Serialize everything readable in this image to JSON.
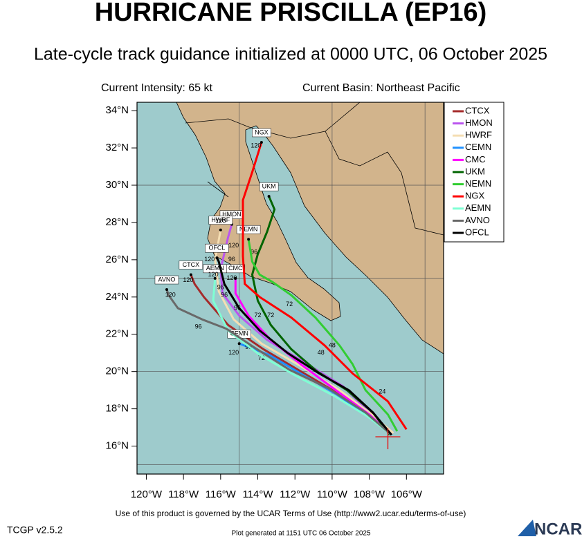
{
  "header": {
    "title": "HURRICANE PRISCILLA (EP16)",
    "subtitle": "Late-cycle track guidance initialized at 0000 UTC, 06 October 2025",
    "intensity": "Current Intensity: 65 kt",
    "basin": "Current Basin: Northeast Pacific"
  },
  "map": {
    "xlim": [
      -120.5,
      -104
    ],
    "ylim": [
      14.5,
      34.45
    ],
    "xticks": [
      {
        "value": -120,
        "label": "120°W"
      },
      {
        "value": -118,
        "label": "118°W"
      },
      {
        "value": -116,
        "label": "116°W"
      },
      {
        "value": -114,
        "label": "114°W"
      },
      {
        "value": -112,
        "label": "112°W"
      },
      {
        "value": -110,
        "label": "110°W"
      },
      {
        "value": -108,
        "label": "108°W"
      },
      {
        "value": -106,
        "label": "106°W"
      }
    ],
    "yticks": [
      {
        "value": 16,
        "label": "16°N"
      },
      {
        "value": 18,
        "label": "18°N"
      },
      {
        "value": 20,
        "label": "20°N"
      },
      {
        "value": 22,
        "label": "22°N"
      },
      {
        "value": 24,
        "label": "24°N"
      },
      {
        "value": 26,
        "label": "26°N"
      },
      {
        "value": 28,
        "label": "28°N"
      },
      {
        "value": 30,
        "label": "30°N"
      },
      {
        "value": 32,
        "label": "32°N"
      },
      {
        "value": 34,
        "label": "34°N"
      }
    ],
    "grid_lons": [
      -115,
      -110,
      -105
    ],
    "grid_lats": [
      15,
      20,
      25,
      30
    ],
    "storm_position": {
      "lon": -107.0,
      "lat": 16.5
    },
    "tracks": [
      {
        "name": "CTCX",
        "color": "#a52a2a",
        "lon": [
          -106.8,
          -107.8,
          -109.3,
          -111.5,
          -113.7,
          -115.6,
          -116.9,
          -117.4,
          -117.6
        ],
        "lat": [
          16.6,
          17.7,
          18.6,
          19.9,
          21.2,
          22.5,
          24.0,
          24.7,
          25.2
        ],
        "hour_labels": [
          {
            "text": "120",
            "lon": -117.75,
            "lat": 24.9
          }
        ]
      },
      {
        "name": "HMON",
        "color": "#bb55ee",
        "lon": [
          -106.7,
          -107.9,
          -109.4,
          -111.5,
          -113.5,
          -115.0,
          -115.9,
          -116.0,
          -115.6,
          -115.4
        ],
        "lat": [
          16.7,
          17.7,
          19.2,
          20.5,
          21.7,
          23.0,
          24.2,
          25.5,
          27.2,
          27.9
        ],
        "hour_labels": [
          {
            "text": "96",
            "lon": -115.4,
            "lat": 26.0
          }
        ]
      },
      {
        "name": "HWRF",
        "color": "#f5deb3",
        "lon": [
          -106.7,
          -108.0,
          -109.6,
          -111.7,
          -113.8,
          -115.3,
          -116.1,
          -116.3,
          -116.0
        ],
        "lat": [
          16.7,
          17.8,
          19.0,
          20.3,
          21.5,
          22.8,
          24.3,
          26.0,
          27.6
        ],
        "hour_labels": [
          {
            "text": "120",
            "lon": -116.0,
            "lat": 28.05
          }
        ]
      },
      {
        "name": "CEMN",
        "color": "#1e90ff",
        "lon": [
          -106.8,
          -108.0,
          -109.8,
          -111.7,
          -113.4,
          -115.0
        ],
        "lat": [
          16.6,
          17.6,
          18.8,
          19.9,
          20.9,
          21.5
        ],
        "hour_labels": [
          {
            "text": "120",
            "lon": -115.3,
            "lat": 21.0
          },
          {
            "text": "96",
            "lon": -114.5,
            "lat": 21.3
          },
          {
            "text": "72",
            "lon": -113.8,
            "lat": 20.7
          }
        ]
      },
      {
        "name": "CMC",
        "color": "#ff00ff",
        "lon": [
          -106.8,
          -108.0,
          -109.8,
          -111.7,
          -113.3,
          -114.5,
          -115.2,
          -115.2
        ],
        "lat": [
          16.6,
          17.7,
          19.0,
          20.4,
          21.7,
          23.0,
          24.2,
          25.0
        ],
        "hour_labels": [
          {
            "text": "120",
            "lon": -115.4,
            "lat": 25.0
          },
          {
            "text": "96",
            "lon": -115.1,
            "lat": 23.4
          },
          {
            "text": "72",
            "lon": -114.0,
            "lat": 23.0
          }
        ]
      },
      {
        "name": "UKM",
        "color": "#006400",
        "lon": [
          -106.9,
          -107.8,
          -109.2,
          -110.8,
          -112.2,
          -113.3,
          -114.0,
          -114.3,
          -114.0,
          -113.5,
          -113.1,
          -113.4
        ],
        "lat": [
          16.6,
          17.8,
          19.0,
          20.0,
          21.2,
          22.5,
          23.8,
          25.2,
          26.3,
          27.5,
          28.7,
          29.4
        ],
        "hour_labels": [
          {
            "text": "96",
            "lon": -114.2,
            "lat": 26.4
          }
        ]
      },
      {
        "name": "NEMN",
        "color": "#32cd32",
        "lon": [
          -106.5,
          -107.0,
          -108.2,
          -108.9,
          -109.6,
          -110.9,
          -112.2,
          -113.2,
          -113.9,
          -114.3,
          -114.5
        ],
        "lat": [
          16.8,
          17.7,
          19.0,
          20.4,
          21.4,
          22.9,
          24.1,
          24.8,
          25.2,
          25.9,
          27.1
        ],
        "hour_labels": [
          {
            "text": "120",
            "lon": -115.3,
            "lat": 26.75
          },
          {
            "text": "72",
            "lon": -112.3,
            "lat": 23.6
          },
          {
            "text": "48",
            "lon": -110.0,
            "lat": 21.4
          },
          {
            "text": "24",
            "lon": -107.3,
            "lat": 18.9
          }
        ]
      },
      {
        "name": "NGX",
        "color": "#ff0000",
        "lon": [
          -106.0,
          -107.0,
          -108.9,
          -110.4,
          -112.2,
          -113.9,
          -114.7,
          -114.8,
          -114.8,
          -114.3,
          -113.8
        ],
        "lat": [
          16.9,
          18.4,
          19.9,
          21.4,
          22.9,
          24.0,
          24.7,
          26.2,
          29.2,
          30.7,
          32.3
        ],
        "hour_labels": [
          {
            "text": "120",
            "lon": -114.1,
            "lat": 32.1
          },
          {
            "text": "72",
            "lon": -113.3,
            "lat": 23.0
          },
          {
            "text": "48",
            "lon": -110.6,
            "lat": 21.0
          }
        ]
      },
      {
        "name": "AEMN",
        "color": "#7fffd4",
        "lon": [
          -106.8,
          -108.1,
          -109.9,
          -112.0,
          -113.9,
          -115.6,
          -116.4,
          -116.3
        ],
        "lat": [
          16.6,
          17.6,
          18.7,
          19.8,
          20.9,
          22.2,
          23.8,
          25.0
        ],
        "hour_labels": [
          {
            "text": "120",
            "lon": -116.4,
            "lat": 25.2
          },
          {
            "text": "96",
            "lon": -115.8,
            "lat": 24.1
          }
        ]
      },
      {
        "name": "AVNO",
        "color": "#696969",
        "lon": [
          -106.8,
          -108.2,
          -110.2,
          -112.3,
          -114.2,
          -115.7,
          -117.0,
          -118.3,
          -118.8,
          -118.9
        ],
        "lat": [
          16.6,
          17.8,
          19.1,
          20.1,
          21.3,
          22.3,
          22.8,
          23.4,
          24.1,
          24.4
        ],
        "hour_labels": [
          {
            "text": "120",
            "lon": -118.7,
            "lat": 24.1
          },
          {
            "text": "96",
            "lon": -117.2,
            "lat": 22.4
          }
        ]
      },
      {
        "name": "OFCL",
        "color": "#000000",
        "lon": [
          -106.8,
          -107.8,
          -109.1,
          -110.7,
          -112.4,
          -113.9,
          -115.0,
          -115.8,
          -116.1,
          -116.2
        ],
        "lat": [
          16.6,
          17.8,
          19.0,
          19.9,
          21.0,
          22.2,
          23.4,
          24.7,
          25.9,
          26.1
        ],
        "hour_labels": [
          {
            "text": "120",
            "lon": -116.6,
            "lat": 26.0
          },
          {
            "text": "96",
            "lon": -116.0,
            "lat": 24.5
          }
        ]
      }
    ]
  },
  "footer": {
    "terms": "Use of this product is governed by the UCAR Terms of Use (http://www2.ucar.edu/terms-of-use)",
    "version": "TCGP v2.5.2",
    "generated": "Plot generated at 1151 UTC   06 October 2025",
    "logo": "NCAR"
  }
}
